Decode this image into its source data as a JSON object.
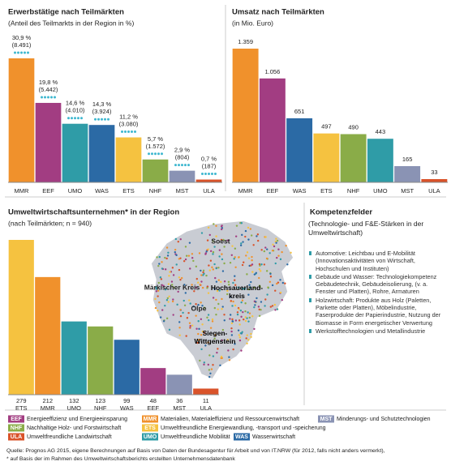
{
  "chart_data": [
    {
      "type": "bar",
      "title": "Erwerbstätige nach Teilmärkten",
      "subtitle": "(Anteil des Teilmarkts in der Region in %)",
      "categories": [
        "MMR",
        "EEF",
        "UMO",
        "WAS",
        "ETS",
        "NHF",
        "MST",
        "ULA"
      ],
      "values": [
        30.9,
        19.8,
        14.6,
        14.3,
        11.2,
        5.7,
        2.9,
        0.7
      ],
      "value_labels": [
        "30,9 %",
        "19,8 %",
        "14,6 %",
        "14,3 %",
        "11,2 %",
        "5,7 %",
        "2,9 %",
        "0,7 %"
      ],
      "employees": [
        8491,
        5442,
        4010,
        3924,
        3080,
        1572,
        804,
        187
      ],
      "employee_labels": [
        "(8.491)",
        "(5.442)",
        "(4.010)",
        "(3.924)",
        "(3.080)",
        "(1.572)",
        "(804)",
        "(187)"
      ],
      "colors": [
        "#f0912c",
        "#a23d82",
        "#2f9ca7",
        "#2b6aa5",
        "#f5c240",
        "#8aac48",
        "#8a93b4",
        "#d9532a"
      ]
    },
    {
      "type": "bar",
      "title": "Umsatz nach Teilmärkten",
      "subtitle": "(in Mio. Euro)",
      "categories": [
        "MMR",
        "EEF",
        "WAS",
        "ETS",
        "NHF",
        "UMO",
        "MST",
        "ULA"
      ],
      "values": [
        1359,
        1056,
        651,
        497,
        490,
        443,
        165,
        33
      ],
      "value_labels": [
        "1.359",
        "1.056",
        "651",
        "497",
        "490",
        "443",
        "165",
        "33"
      ],
      "colors": [
        "#f0912c",
        "#a23d82",
        "#2b6aa5",
        "#f5c240",
        "#8aac48",
        "#2f9ca7",
        "#8a93b4",
        "#d9532a"
      ]
    },
    {
      "type": "bar",
      "title": "Umweltwirtschaftsunternehmen* in der Region",
      "subtitle": "(nach Teilmärkten; n = 940)",
      "categories": [
        "ETS",
        "MMR",
        "UMO",
        "NHF",
        "WAS",
        "EEF",
        "MST",
        "ULA"
      ],
      "values": [
        279,
        212,
        132,
        123,
        99,
        48,
        36,
        11
      ],
      "colors": [
        "#f5c240",
        "#f0912c",
        "#2f9ca7",
        "#8aac48",
        "#2b6aa5",
        "#a23d82",
        "#8a93b4",
        "#d9532a"
      ]
    }
  ],
  "map": {
    "labels": [
      "Soest",
      "Märkischer Kreis",
      "Hochsauerland-kreis",
      "Olpe",
      "Siegen-Wittgenstein"
    ]
  },
  "kompetenz": {
    "title": "Kompetenzfelder",
    "subtitle": "(Technologie- und F&E-Stärken in der Umweltwirtschaft)",
    "items": [
      "Automotive: Leichtbau und E-Mobilität (Innovationsaktivitäten von Wirtschaft, Hochschulen und Instituten)",
      "Gebäude und Wasser: Technologiekompetenz Gebäudetechnik, Gebäudeisolierung, (v. a. Fenster und Platten), Rohre, Armaturen",
      "Holzwirtschaft: Produkte aus Holz (Paletten, Parkette oder Platten), Möbelindustrie, Faserprodukte der Papierindustrie, Nutzung der Biomasse in Form energetischer Verwertung",
      "Werkstofftechnologien und Metallindustrie"
    ]
  },
  "legend": [
    {
      "abbr": "EEF",
      "text": "Energieeffizienz und Energieeinsparung",
      "color": "#a23d82"
    },
    {
      "abbr": "MMR",
      "text": "Materialien, Materialeffizienz und Ressourcenwirtschaft",
      "color": "#f0912c"
    },
    {
      "abbr": "MST",
      "text": "Minderungs- und Schutztechnologien",
      "color": "#8a93b4"
    },
    {
      "abbr": "NHF",
      "text": "Nachhaltige Holz- und Forstwirtschaft",
      "color": "#8aac48"
    },
    {
      "abbr": "ETS",
      "text": "Umweltfreundliche Energiewandlung, -transport und -speicherung",
      "color": "#f5c240"
    },
    {
      "abbr": "ULA",
      "text": "Umweltfreundliche Landwirtschaft",
      "color": "#d9532a"
    },
    {
      "abbr": "UMO",
      "text": "Umweltfreundliche Mobilität",
      "color": "#2f9ca7"
    },
    {
      "abbr": "WAS",
      "text": "Wasserwirtschaft",
      "color": "#2b6aa5"
    }
  ],
  "source": [
    "Quelle: Prognos AG 2015, eigene Berechnungen auf Basis von Daten der Bundesagentur für Arbeit und von IT.NRW (für 2012, falls nicht anders vermerkt),",
    "* auf Basis der im Rahmen des Umweltwirtschaftsberichts erstellten Unternehmensdatenbank"
  ]
}
